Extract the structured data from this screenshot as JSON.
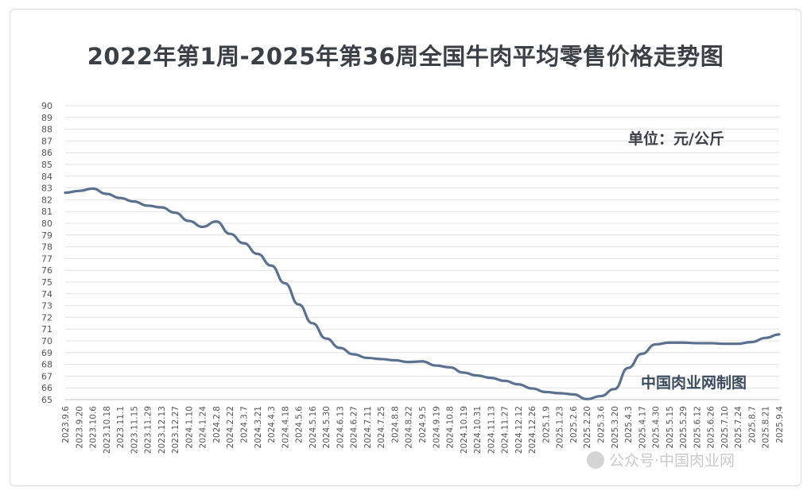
{
  "chart_data": {
    "type": "line",
    "title": "2022年第1周-2025年第36周全国牛肉平均零售价格走势图",
    "unit": "单位：元/公斤",
    "credit": "中国肉业网制图",
    "ylim": [
      65,
      90
    ],
    "yticks": [
      65,
      66,
      67,
      68,
      69,
      70,
      71,
      72,
      73,
      74,
      75,
      76,
      77,
      78,
      79,
      80,
      81,
      82,
      83,
      84,
      85,
      86,
      87,
      88,
      89,
      90
    ],
    "categories": [
      "2023.9.6",
      "2023.9.20",
      "2023.10.6",
      "2023.10.18",
      "2023.11.1",
      "2023.11.15",
      "2023.11.29",
      "2023.12.13",
      "2023.12.27",
      "2024.1.10",
      "2024.1.24",
      "2024.2.8",
      "2024.2.22",
      "2024.3.7",
      "2024.3.21",
      "2024.4.3",
      "2024.4.18",
      "2024.5.6",
      "2024.5.16",
      "2024.5.30",
      "2024.6.13",
      "2024.6.27",
      "2024.7.11",
      "2024.7.25",
      "2024.8.8",
      "2024.8.22",
      "2024.9.5",
      "2024.9.19",
      "2024.10.8",
      "2024.10.19",
      "2024.10.31",
      "2024.11.13",
      "2024.11.27",
      "2024.12.12",
      "2024.12.26",
      "2025.1.9",
      "2025.1.23",
      "2025.2.6",
      "2025.2.20",
      "2025.3.6",
      "2025.3.20",
      "2025.4.3",
      "2025.4.17",
      "2025.4.30",
      "2025.5.15",
      "2025.5.29",
      "2025.6.12",
      "2025.6.26",
      "2025.7.10",
      "2025.7.24",
      "2025.8.7",
      "2025.8.21",
      "2025.9.4"
    ],
    "series": [
      {
        "color": "#5a7190",
        "values": [
          82.6,
          82.75,
          82.95,
          82.5,
          82.15,
          81.85,
          81.5,
          81.35,
          80.9,
          80.2,
          79.7,
          80.15,
          79.1,
          78.3,
          77.4,
          76.4,
          74.9,
          73.1,
          71.5,
          70.2,
          69.4,
          68.85,
          68.55,
          68.45,
          68.35,
          68.2,
          68.25,
          67.9,
          67.75,
          67.3,
          67.05,
          66.85,
          66.6,
          66.3,
          65.95,
          65.65,
          65.55,
          65.45,
          65.05,
          65.3,
          65.9,
          67.7,
          68.9,
          69.7,
          69.85,
          69.85,
          69.8,
          69.8,
          69.75,
          69.75,
          69.9,
          70.25,
          70.55
        ]
      }
    ],
    "grid": true,
    "legend": "none",
    "watermark": "公众号·中国肉业网"
  }
}
